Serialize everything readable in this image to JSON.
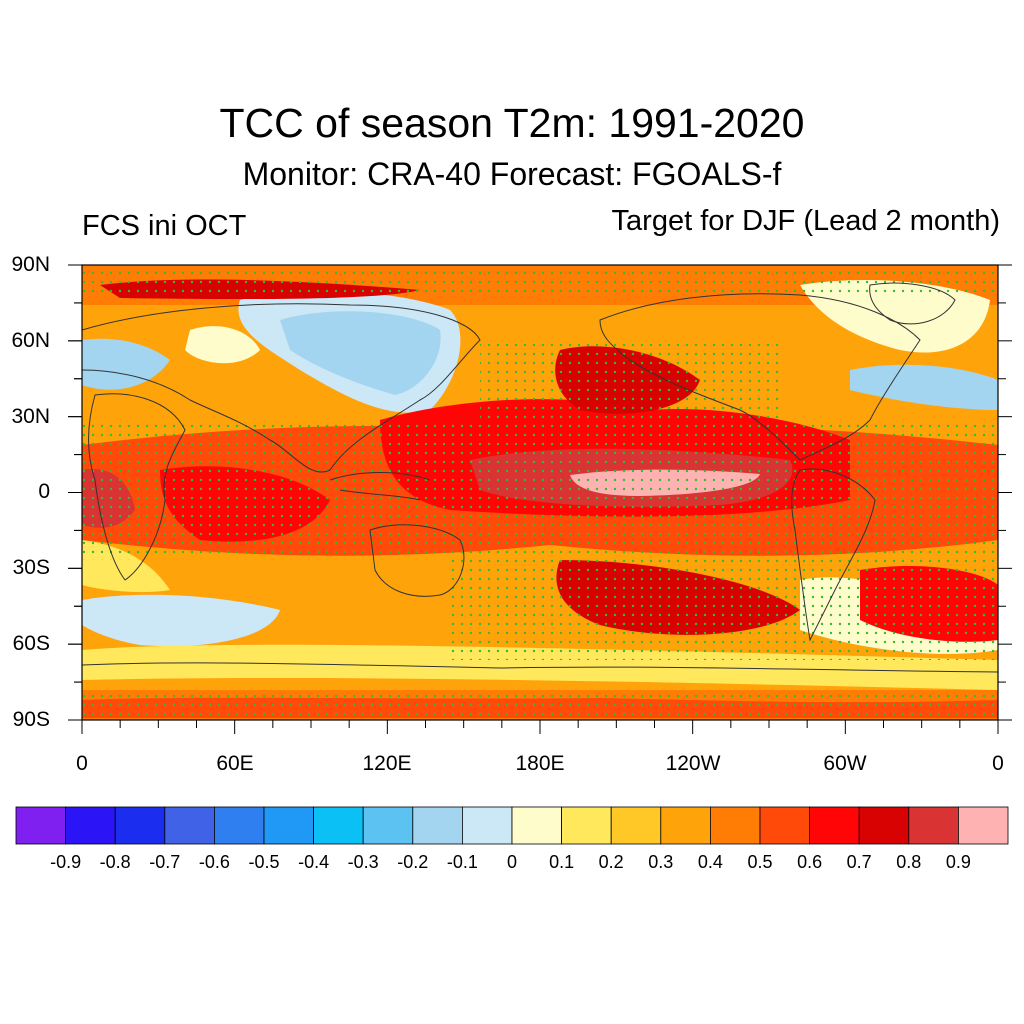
{
  "title": "TCC of season T2m: 1991-2020",
  "subtitle": "Monitor: CRA-40   Forecast: FGOALS-f",
  "left_label": "FCS ini OCT",
  "right_label": "Target for DJF (Lead 2 month)",
  "map": {
    "lat_ticks": [
      "90N",
      "60N",
      "30N",
      "0",
      "30S",
      "60S",
      "90S"
    ],
    "lon_ticks": [
      "0",
      "60E",
      "120E",
      "180E",
      "120W",
      "60W",
      "0"
    ],
    "stipple_color": "#33bb33",
    "coastline_color": "#333333"
  },
  "colorbar": {
    "tick_labels": [
      "-0.9",
      "-0.8",
      "-0.7",
      "-0.6",
      "-0.5",
      "-0.4",
      "-0.3",
      "-0.2",
      "-0.1",
      "0",
      "0.1",
      "0.2",
      "0.3",
      "0.4",
      "0.5",
      "0.6",
      "0.7",
      "0.8",
      "0.9"
    ],
    "colors": [
      "#7f1ff0",
      "#2b14f5",
      "#1b2ef0",
      "#4062e6",
      "#2f7ff0",
      "#1f99f5",
      "#0ac0f5",
      "#5cc2f2",
      "#a3d4f0",
      "#cce8f7",
      "#fffccc",
      "#ffe85c",
      "#ffc826",
      "#ffa30a",
      "#ff7c05",
      "#ff4a0a",
      "#ff0505",
      "#d90202",
      "#d93333",
      "#ffb2b2"
    ]
  }
}
